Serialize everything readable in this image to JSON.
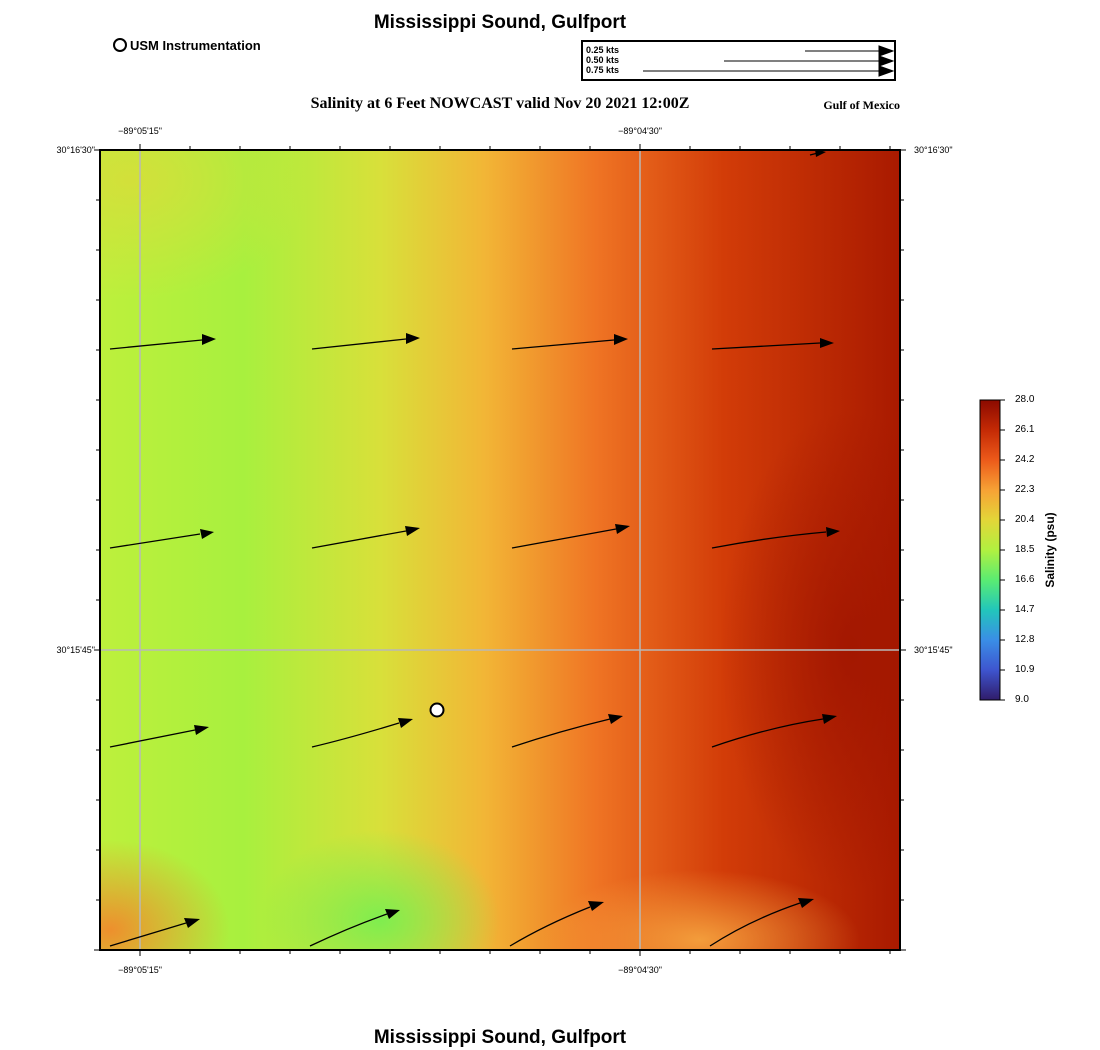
{
  "header": {
    "title": "Mississippi Sound, Gulfport",
    "footer_title": "Mississippi Sound, Gulfport",
    "subtitle": "Salinity at 6 Feet NOWCAST valid Nov 20 2021 12:00Z",
    "region": "Gulf of Mexico"
  },
  "station_legend": {
    "label": "USM Instrumentation"
  },
  "speed_legend": {
    "items": [
      {
        "label": "0.25 kts",
        "speed_kts": 0.25
      },
      {
        "label": "0.50 kts",
        "speed_kts": 0.5
      },
      {
        "label": "0.75 kts",
        "speed_kts": 0.75
      }
    ]
  },
  "map": {
    "lon_labels": [
      "−89°05'15\"",
      "−89°04'30\""
    ],
    "lat_labels": [
      "30°16'30\"",
      "30°15'45\""
    ],
    "station_marker": "USM Instrumentation"
  },
  "colorbar": {
    "label": "Salinity (psu)",
    "ticks": [
      "28.0",
      "26.1",
      "24.2",
      "22.3",
      "20.4",
      "18.5",
      "16.6",
      "14.7",
      "12.8",
      "10.9",
      "9.0"
    ],
    "colors": [
      "#8b0a00",
      "#c42a05",
      "#ec5a1a",
      "#f7a235",
      "#e3d638",
      "#b1f040",
      "#5aec72",
      "#22c6bb",
      "#3a8ee6",
      "#3e55cf",
      "#301c6a"
    ]
  }
}
